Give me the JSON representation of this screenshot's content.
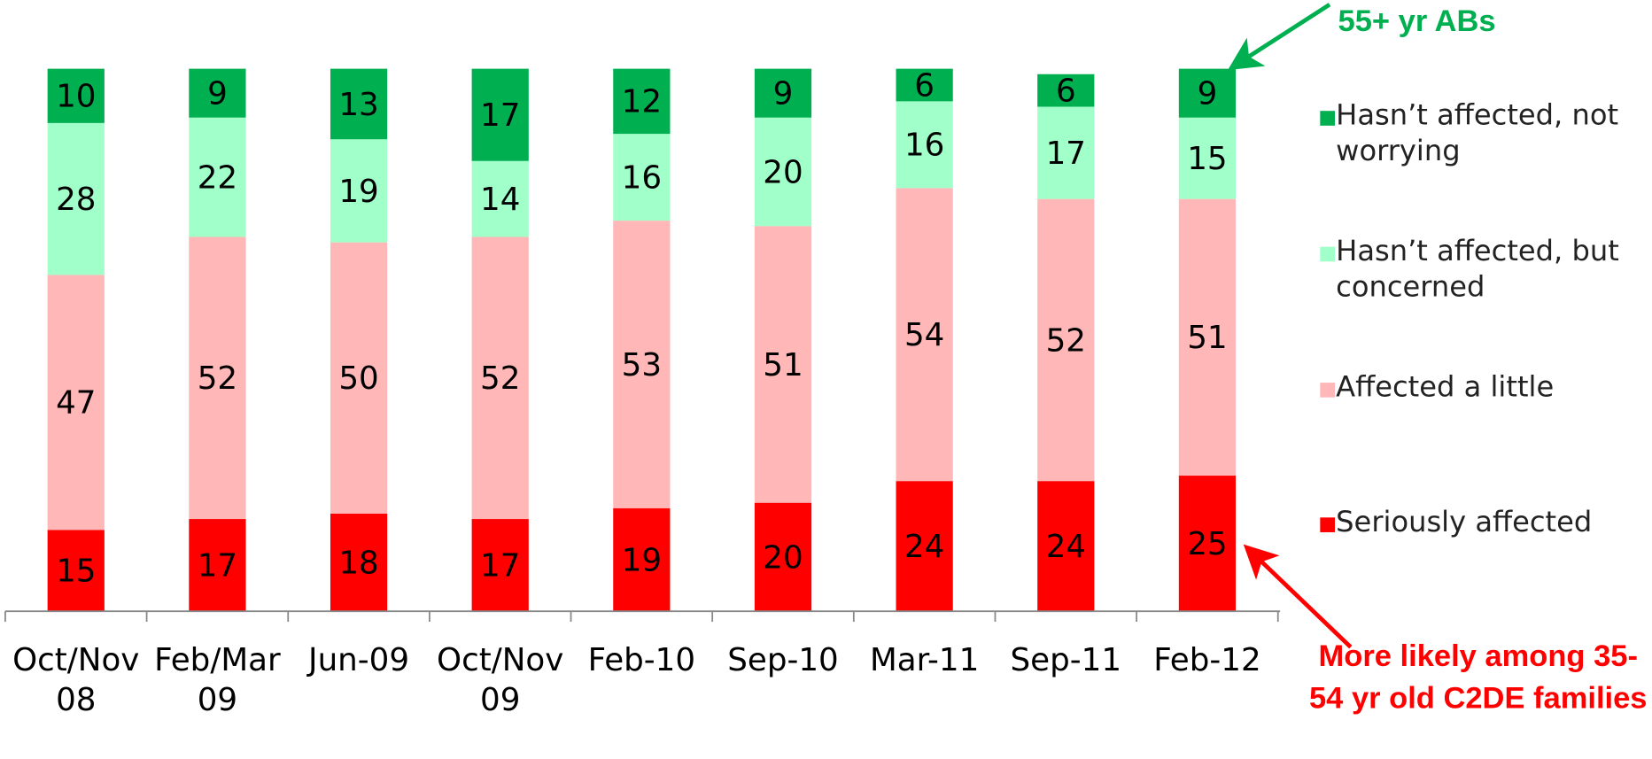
{
  "chart_data": {
    "type": "stacked_bar",
    "categories": [
      "Oct/Nov 08",
      "Feb/Mar 09",
      "Jun-09",
      "Oct/Nov 09",
      "Feb-10",
      "Sep-10",
      "Mar-11",
      "Sep-11",
      "Feb-12"
    ],
    "series": [
      {
        "name": "Seriously affected",
        "color": "#ff0000",
        "values": [
          15,
          17,
          18,
          17,
          19,
          20,
          24,
          24,
          25
        ]
      },
      {
        "name": "Affected a little",
        "color": "#ffb7b7",
        "values": [
          47,
          52,
          50,
          52,
          53,
          51,
          54,
          52,
          51
        ]
      },
      {
        "name": "Hasn’t affected, but concerned",
        "color": "#a1ffc9",
        "values": [
          28,
          22,
          19,
          14,
          16,
          20,
          16,
          17,
          15
        ]
      },
      {
        "name": "Hasn’t affected, not worrying",
        "color": "#00b050",
        "values": [
          10,
          9,
          13,
          17,
          12,
          9,
          6,
          6,
          9
        ]
      }
    ],
    "ylim": [
      0,
      100
    ],
    "annotations": [
      {
        "text": "55+ yr ABs",
        "color": "#00b050"
      },
      {
        "text": "More likely among 35-54 yr old C2DE families",
        "color": "#ff0000"
      }
    ]
  }
}
